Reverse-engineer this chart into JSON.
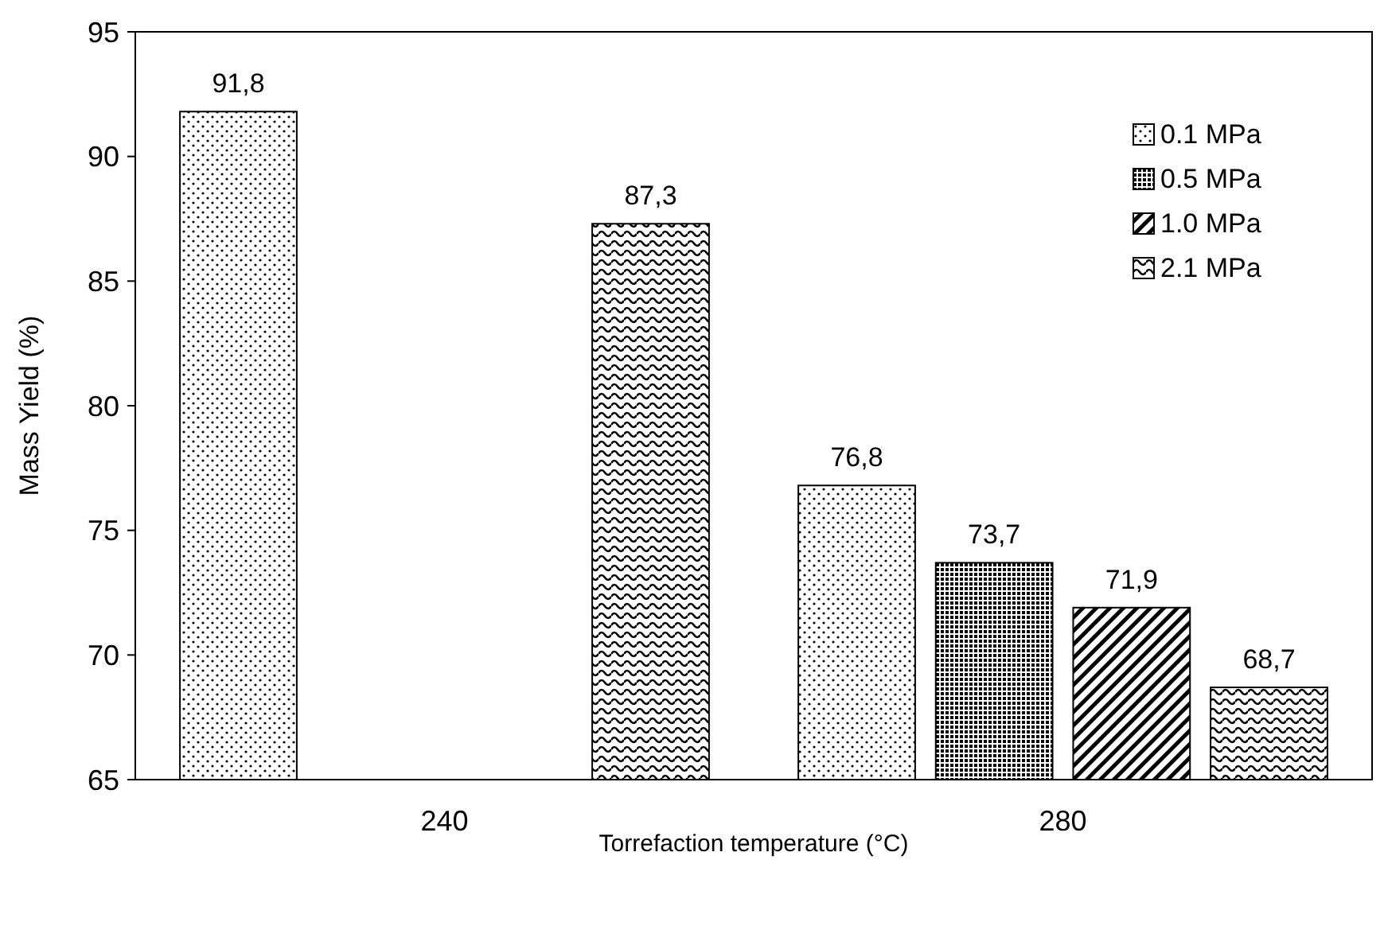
{
  "chart_data": {
    "type": "bar",
    "xlabel": "Torrefaction temperature (°C)",
    "ylabel": "Mass Yield (%)",
    "categories": [
      "240",
      "280"
    ],
    "series": [
      {
        "name": "0.1 MPa",
        "color": "#000000",
        "values": [
          91.8,
          76.8
        ],
        "value_labels": [
          "91,8",
          "76,8"
        ]
      },
      {
        "name": "0.5 MPa",
        "color": "#000000",
        "values": [
          null,
          73.7
        ],
        "value_labels": [
          null,
          "73,7"
        ]
      },
      {
        "name": "1.0 MPa",
        "color": "#000000",
        "values": [
          null,
          71.9
        ],
        "value_labels": [
          null,
          "71,9"
        ]
      },
      {
        "name": "2.1 MPa",
        "color": "#000000",
        "values": [
          87.3,
          68.7
        ],
        "value_labels": [
          "87,3",
          "68,7"
        ]
      }
    ],
    "ylim": [
      65,
      95
    ],
    "yticks": [
      65,
      70,
      75,
      80,
      85,
      90,
      95
    ],
    "grid": false,
    "legend": "top right"
  }
}
